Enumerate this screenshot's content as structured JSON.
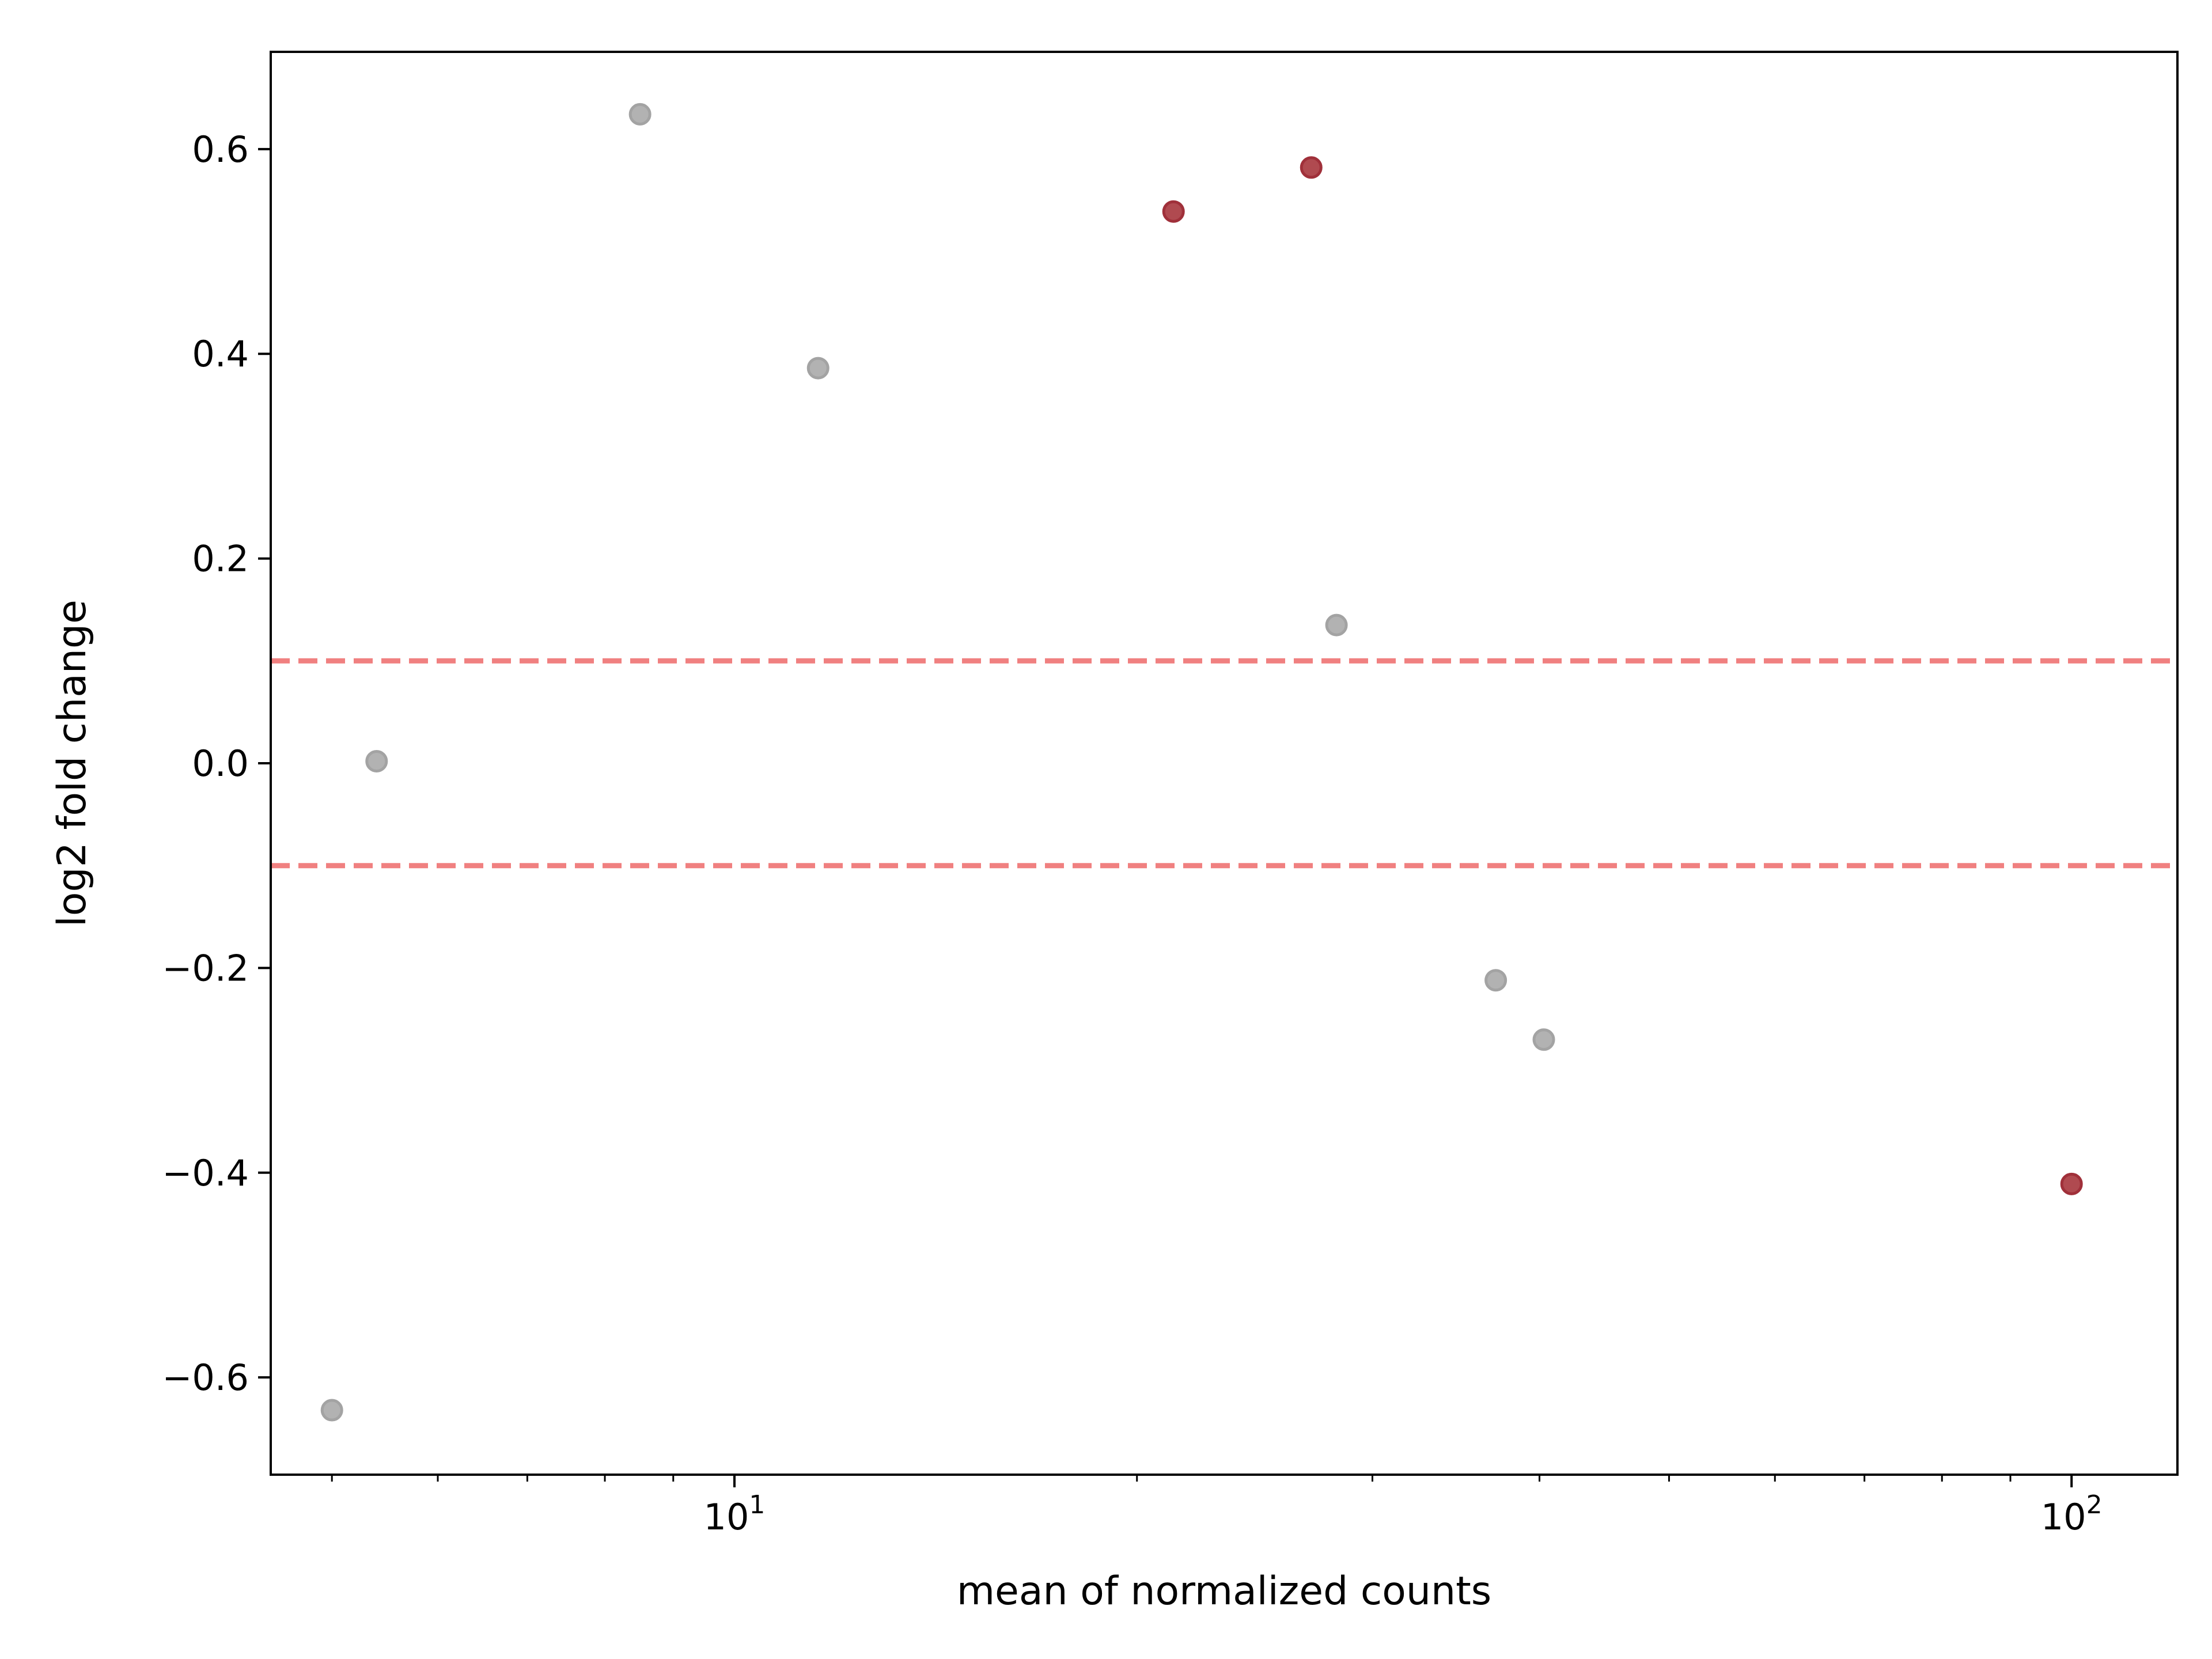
{
  "chart_data": {
    "type": "scatter",
    "title": "",
    "xlabel": "mean of normalized counts",
    "ylabel": "log2 fold change",
    "xscale": "log",
    "xlim": [
      4.5,
      120
    ],
    "ylim": [
      -0.695,
      0.695
    ],
    "grid": false,
    "x_major_ticks": [
      {
        "value": 10,
        "base": "10",
        "exp": "1"
      },
      {
        "value": 100,
        "base": "10",
        "exp": "2"
      }
    ],
    "x_minor_ticks": [
      5,
      6,
      7,
      8,
      9,
      20,
      30,
      40,
      50,
      60,
      70,
      80,
      90
    ],
    "y_ticks": [
      {
        "value": -0.6,
        "label": "−0.6"
      },
      {
        "value": -0.4,
        "label": "−0.4"
      },
      {
        "value": -0.2,
        "label": "−0.2"
      },
      {
        "value": 0.0,
        "label": "0.0"
      },
      {
        "value": 0.2,
        "label": "0.2"
      },
      {
        "value": 0.4,
        "label": "0.4"
      },
      {
        "value": 0.6,
        "label": "0.6"
      }
    ],
    "threshold_lines": [
      0.1,
      -0.1
    ],
    "series": [
      {
        "color": "#b2b2b2",
        "edge": "#a3a3a3",
        "points": [
          {
            "x": 5.0,
            "y": -0.632
          },
          {
            "x": 5.4,
            "y": 0.002
          },
          {
            "x": 8.5,
            "y": 0.634
          },
          {
            "x": 11.55,
            "y": 0.386
          },
          {
            "x": 28.2,
            "y": 0.135
          },
          {
            "x": 37.1,
            "y": -0.212
          },
          {
            "x": 40.3,
            "y": -0.27
          }
        ]
      },
      {
        "color": "#b04a50",
        "edge": "#a0303a",
        "points": [
          {
            "x": 21.3,
            "y": 0.539
          },
          {
            "x": 27.0,
            "y": 0.582
          },
          {
            "x": 100.0,
            "y": -0.411
          }
        ]
      }
    ],
    "colors": {
      "axes": "#000000",
      "threshold": "#f08080",
      "background": "#ffffff"
    }
  }
}
